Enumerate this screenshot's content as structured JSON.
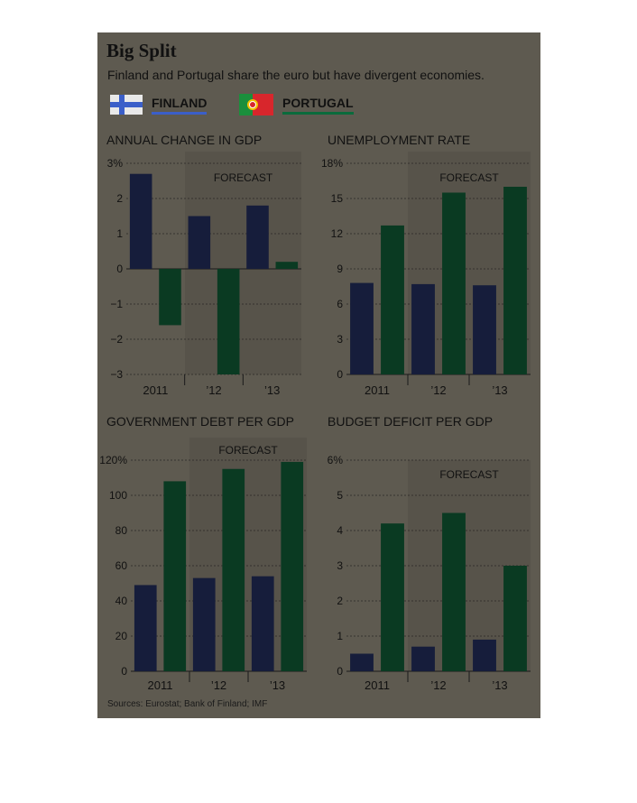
{
  "header": {
    "title": "Big Split",
    "subtitle": "Finland and Portugal share the euro but have divergent economies."
  },
  "legend": [
    {
      "label": "FINLAND",
      "color": "#161d3b",
      "flag": "finland-flag-icon"
    },
    {
      "label": "PORTUGAL",
      "color": "#0a3a22",
      "flag": "portugal-flag-icon"
    }
  ],
  "colors": {
    "finland": "#161d3b",
    "portugal": "#0a3a22",
    "panel_background": "#5e5a50",
    "forecast_shade": "#57534a"
  },
  "forecast_label": "FORECAST",
  "sources": "Sources: Eurostat; Bank of Finland; IMF",
  "chart_data": [
    {
      "type": "bar",
      "title": "ANNUAL CHANGE IN GDP",
      "categories": [
        "2011",
        "’12",
        "’13"
      ],
      "series": [
        {
          "name": "FINLAND",
          "values": [
            2.7,
            1.5,
            1.8
          ]
        },
        {
          "name": "PORTUGAL",
          "values": [
            -1.6,
            -3.0,
            0.2
          ]
        }
      ],
      "ylim": [
        -3,
        3
      ],
      "yticks": [
        "3%",
        "2",
        "1",
        "0",
        "−1",
        "−2",
        "−3"
      ],
      "forecast_from": "’12",
      "grid": true
    },
    {
      "type": "bar",
      "title": "UNEMPLOYMENT RATE",
      "categories": [
        "2011",
        "’12",
        "’13"
      ],
      "series": [
        {
          "name": "FINLAND",
          "values": [
            7.8,
            7.7,
            7.6
          ]
        },
        {
          "name": "PORTUGAL",
          "values": [
            12.7,
            15.5,
            16.0
          ]
        }
      ],
      "ylim": [
        0,
        18
      ],
      "yticks": [
        "18%",
        "15",
        "12",
        "9",
        "6",
        "3",
        "0"
      ],
      "forecast_from": "’12",
      "grid": true
    },
    {
      "type": "bar",
      "title": "GOVERNMENT DEBT PER GDP",
      "categories": [
        "2011",
        "’12",
        "’13"
      ],
      "series": [
        {
          "name": "FINLAND",
          "values": [
            49,
            53,
            54
          ]
        },
        {
          "name": "PORTUGAL",
          "values": [
            108,
            115,
            119
          ]
        }
      ],
      "ylim": [
        0,
        120
      ],
      "yticks": [
        "120%",
        "100",
        "80",
        "60",
        "40",
        "20",
        "0"
      ],
      "forecast_from": "’12",
      "grid": true
    },
    {
      "type": "bar",
      "title": "BUDGET DEFICIT PER GDP",
      "categories": [
        "2011",
        "’12",
        "’13"
      ],
      "series": [
        {
          "name": "FINLAND",
          "values": [
            0.5,
            0.7,
            0.9
          ]
        },
        {
          "name": "PORTUGAL",
          "values": [
            4.2,
            4.5,
            3.0
          ]
        }
      ],
      "ylim": [
        0,
        6
      ],
      "yticks": [
        "6%",
        "5",
        "4",
        "3",
        "2",
        "1",
        "0"
      ],
      "forecast_from": "’12",
      "grid": true
    }
  ]
}
